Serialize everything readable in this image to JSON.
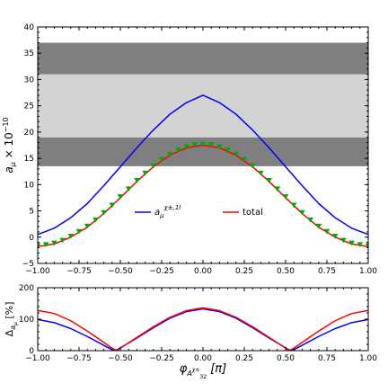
{
  "chart_data": [
    {
      "type": "line",
      "ylabel": "a_μ × 10^{−10}",
      "xlim": [
        -1.0,
        1.0
      ],
      "ylim": [
        -5,
        40
      ],
      "xticks": [
        "−1.00",
        "−0.75",
        "−0.50",
        "−0.25",
        "0.00",
        "0.25",
        "0.50",
        "0.75",
        "1.00"
      ],
      "yticks": [
        "−5",
        "0",
        "5",
        "10",
        "15",
        "20",
        "25",
        "30",
        "35",
        "40"
      ],
      "bands": [
        {
          "y": [
            13.5,
            19.0
          ],
          "color": "#7f7f7f"
        },
        {
          "y": [
            19.0,
            31.0
          ],
          "color": "#d3d3d3"
        },
        {
          "y": [
            31.0,
            37.0
          ],
          "color": "#7f7f7f"
        }
      ],
      "legend": {
        "placement": "center",
        "entries": [
          {
            "label": "a_μ^{χ±,1l}",
            "color": "#0000ff"
          },
          {
            "label": "total",
            "color": "#ff0000"
          }
        ]
      },
      "series": [
        {
          "name": "a_μ^{χ±,1l}",
          "color": "#0000ff",
          "x": [
            -1.0,
            -0.9,
            -0.8,
            -0.7,
            -0.6,
            -0.5,
            -0.4,
            -0.3,
            -0.2,
            -0.1,
            0.0,
            0.1,
            0.2,
            0.3,
            0.4,
            0.5,
            0.6,
            0.7,
            0.8,
            0.9,
            1.0
          ],
          "y": [
            0.5,
            1.7,
            3.7,
            6.4,
            9.8,
            13.4,
            17.0,
            20.4,
            23.4,
            25.6,
            27.0,
            25.6,
            23.4,
            20.4,
            17.0,
            13.4,
            9.8,
            6.4,
            3.7,
            1.7,
            0.5
          ]
        },
        {
          "name": "total",
          "color": "#ff0000",
          "x": [
            -1.0,
            -0.9,
            -0.8,
            -0.7,
            -0.6,
            -0.5,
            -0.4,
            -0.3,
            -0.2,
            -0.1,
            0.0,
            0.1,
            0.2,
            0.3,
            0.4,
            0.5,
            0.6,
            0.7,
            0.8,
            0.9,
            1.0
          ],
          "y": [
            -1.8,
            -1.3,
            0.0,
            1.9,
            4.5,
            7.5,
            10.6,
            13.4,
            15.6,
            17.0,
            17.5,
            17.0,
            15.6,
            13.4,
            10.6,
            7.5,
            4.5,
            1.9,
            0.0,
            -1.3,
            -1.8
          ]
        },
        {
          "color": "#00aa00",
          "marker": "triangle-down",
          "x": [
            -1.0,
            -0.95,
            -0.9,
            -0.85,
            -0.8,
            -0.75,
            -0.7,
            -0.65,
            -0.6,
            -0.55,
            -0.5,
            -0.45,
            -0.4,
            -0.35,
            -0.3,
            -0.25,
            -0.2,
            -0.15,
            -0.1,
            -0.05,
            0.0,
            0.05,
            0.1,
            0.15,
            0.2,
            0.25,
            0.3,
            0.35,
            0.4,
            0.45,
            0.5,
            0.55,
            0.6,
            0.65,
            0.7,
            0.75,
            0.8,
            0.85,
            0.9,
            0.95,
            1.0
          ],
          "y": [
            -1.6,
            -1.4,
            -1.1,
            -0.6,
            0.2,
            1.1,
            2.1,
            3.3,
            4.7,
            6.1,
            7.7,
            9.2,
            10.8,
            12.2,
            13.6,
            14.8,
            15.8,
            16.6,
            17.2,
            17.6,
            17.7,
            17.6,
            17.2,
            16.6,
            15.8,
            14.8,
            13.6,
            12.2,
            10.8,
            9.2,
            7.7,
            6.1,
            4.7,
            3.3,
            2.1,
            1.1,
            0.2,
            -0.6,
            -1.1,
            -1.4,
            -1.6
          ]
        }
      ]
    },
    {
      "type": "line",
      "xlabel": "φ_{A_{32}^{χ±}} [π]",
      "ylabel": "Δ_{a_μ} [%]",
      "xlim": [
        -1.0,
        1.0
      ],
      "ylim": [
        0,
        200
      ],
      "xticks": [
        "−1.00",
        "−0.75",
        "−0.50",
        "−0.25",
        "0.00",
        "0.25",
        "0.50",
        "0.75",
        "1.00"
      ],
      "yticks": [
        "0",
        "100",
        "200"
      ],
      "series": [
        {
          "color": "#0000ff",
          "x": [
            -1.0,
            -0.9,
            -0.8,
            -0.7,
            -0.6,
            -0.55,
            -0.53,
            -0.5,
            -0.4,
            -0.3,
            -0.2,
            -0.1,
            0.0,
            0.1,
            0.2,
            0.3,
            0.4,
            0.5,
            0.53,
            0.55,
            0.6,
            0.7,
            0.8,
            0.9,
            1.0
          ],
          "y": [
            99,
            89,
            70,
            45,
            17,
            3,
            0,
            9,
            40,
            73,
            103,
            124,
            133,
            124,
            103,
            73,
            40,
            9,
            0,
            3,
            17,
            45,
            70,
            89,
            99
          ]
        },
        {
          "color": "#ff0000",
          "x": [
            -1.0,
            -0.9,
            -0.8,
            -0.7,
            -0.6,
            -0.55,
            -0.52,
            -0.5,
            -0.4,
            -0.3,
            -0.2,
            -0.1,
            0.0,
            0.1,
            0.2,
            0.3,
            0.4,
            0.5,
            0.52,
            0.55,
            0.6,
            0.7,
            0.8,
            0.9,
            1.0
          ],
          "y": [
            128,
            118,
            95,
            62,
            26,
            8,
            0,
            8,
            42,
            76,
            106,
            127,
            136,
            127,
            106,
            76,
            42,
            8,
            0,
            8,
            26,
            62,
            95,
            118,
            128
          ]
        }
      ]
    }
  ]
}
